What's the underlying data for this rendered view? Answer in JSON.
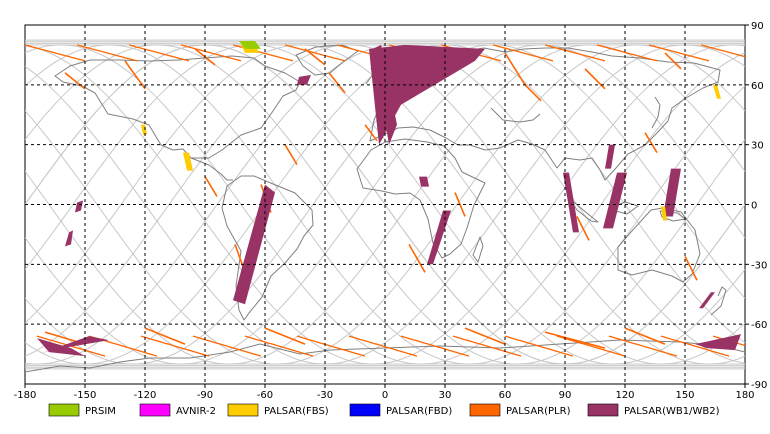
{
  "map": {
    "projection": "equirectangular",
    "lon_range": [
      -180,
      180
    ],
    "lat_range": [
      -90,
      90
    ],
    "lon_ticks": [
      "-180",
      "-150",
      "-120",
      "-90",
      "-60",
      "-30",
      "0",
      "30",
      "60",
      "90",
      "120",
      "150",
      "180"
    ],
    "lat_ticks": [
      "90",
      "60",
      "30",
      "0",
      "-30",
      "-60",
      "-90"
    ],
    "grid": "dotted every 30 degrees",
    "orbit_track_color": "#c8c8c8",
    "land_outline_color": "#808080"
  },
  "legend": {
    "items": [
      {
        "label": "PRSIM",
        "color": "#99cc00"
      },
      {
        "label": "AVNIR-2",
        "color": "#ff00ff"
      },
      {
        "label": "PALSAR(FBS)",
        "color": "#ffcc00"
      },
      {
        "label": "PALSAR(FBD)",
        "color": "#0000ff"
      },
      {
        "label": "PALSAR(PLR)",
        "color": "#ff6600"
      },
      {
        "label": "PALSAR(WB1/WB2)",
        "color": "#993366"
      }
    ]
  },
  "observations": {
    "wb": [
      {
        "lon": [
          -8,
          10,
          50,
          45,
          8,
          -3
        ],
        "lat": [
          78,
          80,
          78,
          72,
          50,
          30
        ]
      },
      {
        "lon": [
          -6,
          -2,
          6,
          2
        ],
        "lat": [
          78,
          80,
          40,
          30
        ]
      },
      {
        "lon": [
          -76,
          -70,
          -55,
          -60
        ],
        "lat": [
          -48,
          -50,
          6,
          10
        ]
      },
      {
        "lon": [
          29,
          33,
          24,
          21
        ],
        "lat": [
          -3,
          -3,
          -30,
          -30
        ]
      },
      {
        "lon": [
          89,
          92,
          97,
          94
        ],
        "lat": [
          16,
          16,
          -14,
          -14
        ]
      },
      {
        "lon": [
          112,
          115,
          113,
          110
        ],
        "lat": [
          30,
          30,
          18,
          18
        ]
      },
      {
        "lon": [
          116,
          121,
          114,
          109
        ],
        "lat": [
          16,
          16,
          -12,
          -12
        ]
      },
      {
        "lon": [
          143,
          148,
          144,
          139
        ],
        "lat": [
          18,
          18,
          -6,
          -6
        ]
      },
      {
        "lon": [
          163,
          165,
          159,
          157
        ],
        "lat": [
          -44,
          -44,
          -52,
          -52
        ]
      },
      {
        "lon": [
          -43,
          -37,
          -39,
          -44
        ],
        "lat": [
          64,
          65,
          60,
          60
        ]
      },
      {
        "lon": [
          -174,
          -157,
          -150,
          -168
        ],
        "lat": [
          -67,
          -72,
          -76,
          -74
        ]
      },
      {
        "lon": [
          -167,
          -138,
          -148,
          -173
        ],
        "lat": [
          -73,
          -68,
          -66,
          -75
        ]
      },
      {
        "lon": [
          155,
          178,
          175,
          161
        ],
        "lat": [
          -70,
          -65,
          -73,
          -72
        ]
      },
      {
        "lon": [
          -154,
          -151,
          -152,
          -155
        ],
        "lat": [
          1,
          2,
          -3,
          -4
        ]
      },
      {
        "lon": [
          -158,
          -156,
          -157,
          -160
        ],
        "lat": [
          -14,
          -13,
          -20,
          -21
        ]
      },
      {
        "lon": [
          17,
          21,
          22,
          18
        ],
        "lat": [
          14,
          14,
          9,
          9
        ]
      }
    ],
    "fbs": [
      {
        "lon": [
          -72,
          -65,
          -63,
          -70
        ],
        "lat": [
          80,
          80,
          76,
          76
        ]
      },
      {
        "lon": [
          -101,
          -98,
          -96,
          -99
        ],
        "lat": [
          26,
          26,
          17,
          17
        ]
      },
      {
        "lon": [
          -122,
          -120,
          -119,
          -121
        ],
        "lat": [
          40,
          40,
          35,
          35
        ]
      },
      {
        "lon": [
          164,
          166,
          168,
          166
        ],
        "lat": [
          60,
          60,
          53,
          53
        ]
      },
      {
        "lon": [
          138,
          140,
          141,
          139
        ],
        "lat": [
          -1,
          -1,
          -8,
          -8
        ]
      }
    ],
    "prism": [
      {
        "lon": [
          -73,
          -65,
          -62,
          -70
        ],
        "lat": [
          82,
          82,
          78,
          78
        ]
      }
    ]
  }
}
